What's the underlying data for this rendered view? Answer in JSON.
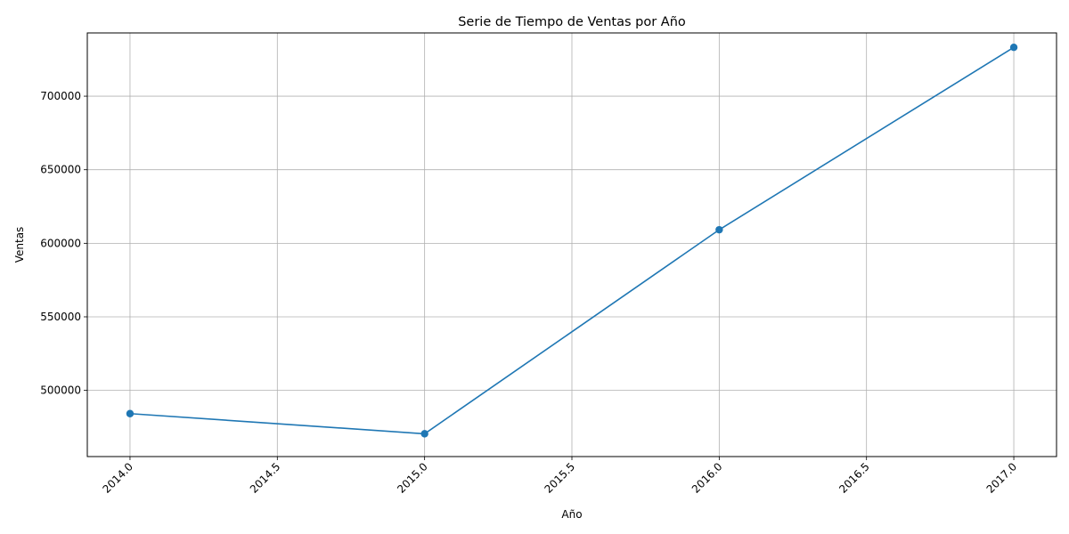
{
  "chart_data": {
    "type": "line",
    "title": "Serie de Tiempo de Ventas por Año",
    "xlabel": "Año",
    "ylabel": "Ventas",
    "x_ticks": [
      "2014.0",
      "2014.5",
      "2015.0",
      "2015.5",
      "2016.0",
      "2016.5",
      "2017.0"
    ],
    "y_ticks": [
      "500000",
      "550000",
      "600000",
      "650000",
      "700000"
    ],
    "xlim": [
      2013.855,
      2017.145
    ],
    "ylim": [
      455000,
      743000
    ],
    "grid": true,
    "marker": "circle",
    "series": [
      {
        "x": [
          2014,
          2015,
          2016,
          2017
        ],
        "values": [
          484200,
          470500,
          609200,
          733200
        ],
        "color": "#1f77b4"
      }
    ]
  }
}
